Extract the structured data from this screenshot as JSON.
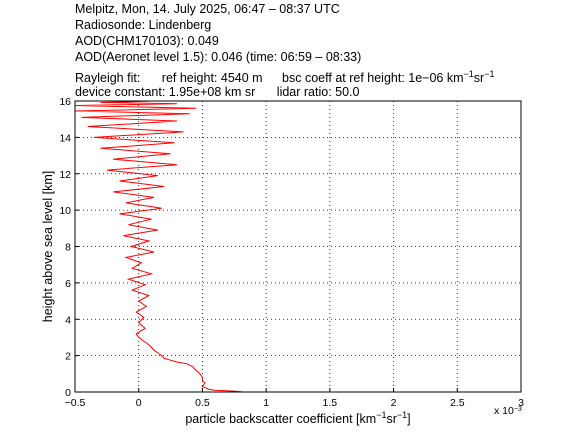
{
  "header": {
    "line1": "Melpitz, Mon, 14. July 2025, 06:47 – 08:37 UTC",
    "line2": "Radiosonde: Lindenberg",
    "line3": "AOD(CHM170103): 0.049",
    "line4": "AOD(Aeronet level 1.5): 0.046   (time: 06:59 – 08:33)",
    "line5_a": "Rayleigh fit:",
    "line5_b": "ref height: 4540 m",
    "line5_c": "bsc coeff at ref height: 1e−06 km",
    "line5_c_sup1": "−1",
    "line5_c_mid": "sr",
    "line5_c_sup2": "−1",
    "line6_a": "device constant: 1.95e+08 km sr",
    "line6_b": "lidar ratio: 50.0"
  },
  "chart_data": {
    "type": "line",
    "xlabel_main": "particle backscatter coefficient [km",
    "xlabel_sup1": "−1",
    "xlabel_mid": "sr",
    "xlabel_sup2": "−1",
    "xlabel_end": "]",
    "x_multiplier": "x 10",
    "x_multiplier_exp": "−3",
    "ylabel": "height above sea level [km]",
    "xlim": [
      -0.5,
      3
    ],
    "ylim": [
      0,
      16
    ],
    "xticks": [
      "−0.5",
      "0",
      "0.5",
      "1",
      "1.5",
      "2",
      "2.5",
      "3"
    ],
    "xtick_values": [
      -0.5,
      0,
      0.5,
      1,
      1.5,
      2,
      2.5,
      3
    ],
    "yticks": [
      "0",
      "2",
      "4",
      "6",
      "8",
      "10",
      "12",
      "14",
      "16"
    ],
    "ytick_values": [
      0,
      2,
      4,
      6,
      8,
      10,
      12,
      14,
      16
    ],
    "grid": true,
    "series": [
      {
        "color": "#ff0000",
        "x": [
          0.82,
          0.75,
          0.6,
          0.55,
          0.5,
          0.52,
          0.5,
          0.5,
          0.48,
          0.45,
          0.42,
          0.38,
          0.3,
          0.25,
          0.2,
          0.18,
          0.15,
          0.12,
          0.1,
          0.08,
          0.05,
          0.02,
          0.0,
          -0.02,
          0.05,
          0.0,
          0.04,
          -0.02,
          0.06,
          0.0,
          0.08,
          -0.05,
          0.05,
          -0.08,
          0.1,
          -0.05,
          0.02,
          -0.1,
          0.12,
          -0.06,
          0.08,
          -0.12,
          0.15,
          -0.08,
          0.1,
          -0.15,
          0.18,
          -0.1,
          0.12,
          -0.2,
          0.2,
          -0.15,
          0.15,
          -0.25,
          0.3,
          -0.2,
          0.25,
          -0.3,
          0.28,
          -0.35,
          0.35,
          -0.4,
          0.3,
          -0.45,
          0.4,
          -0.5,
          0.45,
          -0.5,
          0.3,
          -0.3,
          0.1
        ],
        "y": [
          0.0,
          0.05,
          0.1,
          0.15,
          0.3,
          0.5,
          0.6,
          0.8,
          1.0,
          1.2,
          1.4,
          1.55,
          1.65,
          1.75,
          1.85,
          2.0,
          2.15,
          2.3,
          2.45,
          2.6,
          2.75,
          2.9,
          3.0,
          3.2,
          3.5,
          3.8,
          4.1,
          4.4,
          4.7,
          5.0,
          5.3,
          5.6,
          5.9,
          6.2,
          6.5,
          6.8,
          7.1,
          7.4,
          7.7,
          8.0,
          8.3,
          8.6,
          8.9,
          9.2,
          9.5,
          9.8,
          10.1,
          10.4,
          10.7,
          11.0,
          11.3,
          11.6,
          11.9,
          12.2,
          12.5,
          12.8,
          13.1,
          13.4,
          13.7,
          14.0,
          14.3,
          14.6,
          14.9,
          15.1,
          15.3,
          15.45,
          15.6,
          15.75,
          15.85,
          15.92,
          16.0
        ]
      }
    ]
  }
}
